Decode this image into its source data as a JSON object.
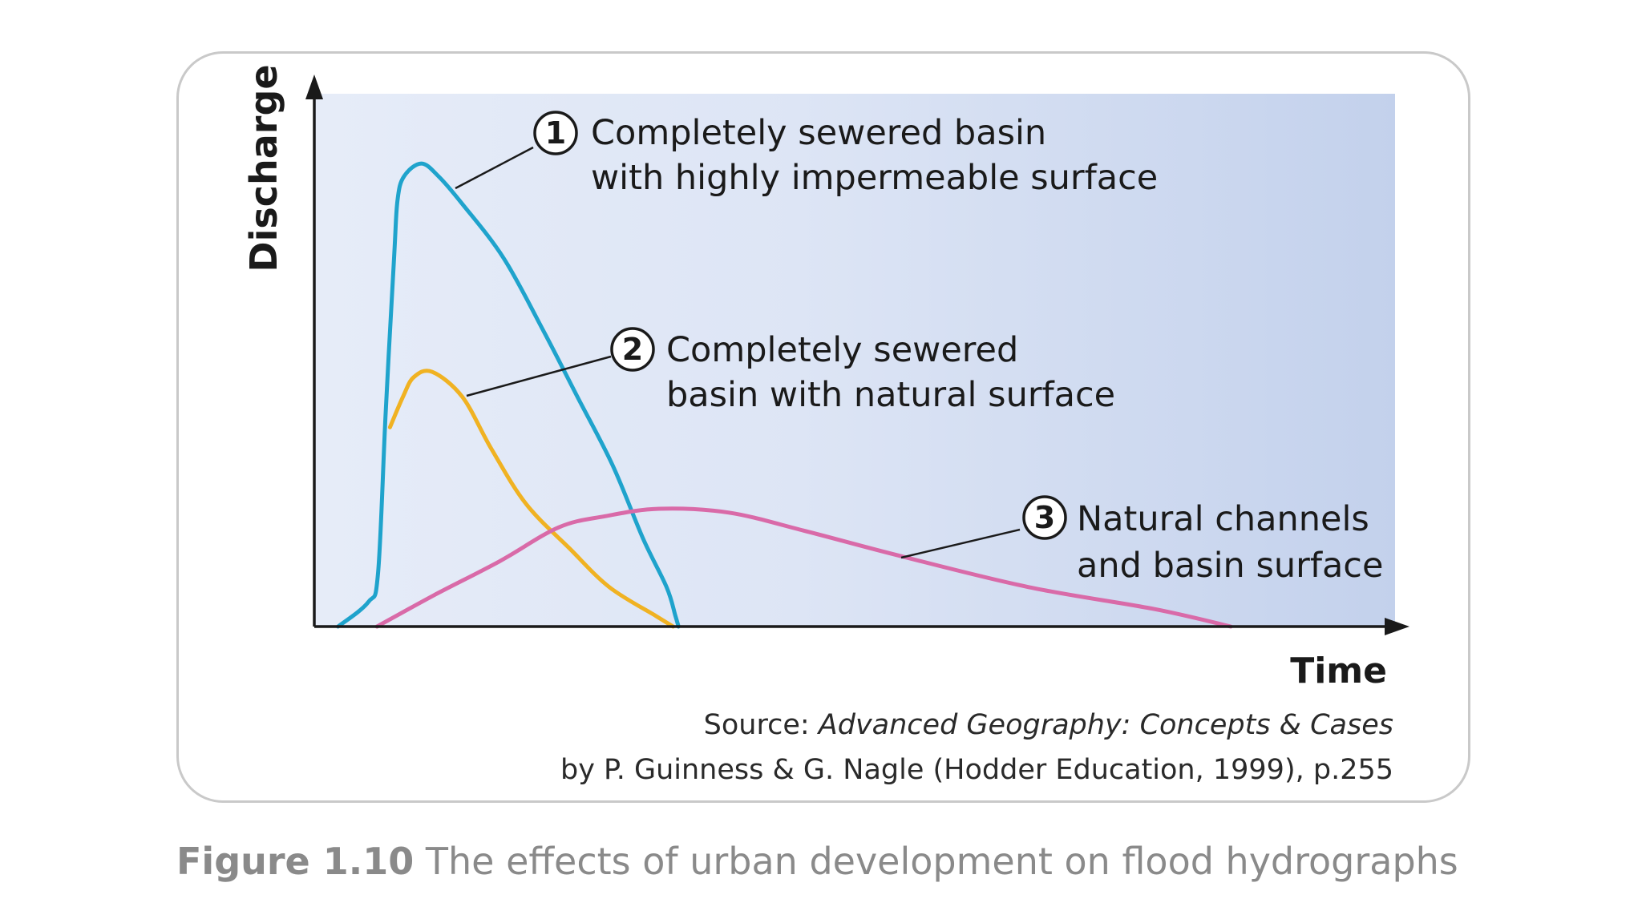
{
  "chart_data": {
    "type": "line",
    "xlabel": "Time",
    "ylabel": "Discharge",
    "xlim": [
      0,
      100
    ],
    "ylim": [
      0,
      100
    ],
    "grid": false,
    "series": [
      {
        "id": "1",
        "marker": "1",
        "label_lines": [
          "Completely sewered basin",
          "with highly impermeable surface"
        ],
        "color": "#1fa3cc",
        "points": [
          [
            2.2,
            0
          ],
          [
            5,
            4.6
          ],
          [
            5.9,
            10
          ],
          [
            6.6,
            40
          ],
          [
            7.4,
            70
          ],
          [
            7.7,
            80
          ],
          [
            8.3,
            84.5
          ],
          [
            9.9,
            86.9
          ],
          [
            11.5,
            84.5
          ],
          [
            13.7,
            79.3
          ],
          [
            17.5,
            69.2
          ],
          [
            21.2,
            55.5
          ],
          [
            24.3,
            43.3
          ],
          [
            27.6,
            30.3
          ],
          [
            30.4,
            16.6
          ],
          [
            32.6,
            7.4
          ],
          [
            33.4,
            2.1
          ],
          [
            33.7,
            0
          ]
        ]
      },
      {
        "id": "2",
        "marker": "2",
        "label_lines": [
          "Completely sewered",
          "basin with natural surface"
        ],
        "color": "#f0b222",
        "points": [
          [
            7.0,
            37.4
          ],
          [
            8.2,
            43.1
          ],
          [
            9.2,
            46.8
          ],
          [
            10.9,
            47.8
          ],
          [
            13.7,
            43.1
          ],
          [
            16.4,
            33.3
          ],
          [
            19.6,
            23.0
          ],
          [
            23.6,
            14.7
          ],
          [
            27.3,
            7.4
          ],
          [
            31.6,
            2.0
          ],
          [
            33.2,
            0
          ]
        ]
      },
      {
        "id": "3",
        "marker": "3",
        "label_lines": [
          "Natural channels",
          "and basin surface"
        ],
        "color": "#d96aa8",
        "points": [
          [
            5.8,
            0
          ],
          [
            11.0,
            5.8
          ],
          [
            17.1,
            12.2
          ],
          [
            22.6,
            18.6
          ],
          [
            26.9,
            20.7
          ],
          [
            31.9,
            22.1
          ],
          [
            38.3,
            21.4
          ],
          [
            45.3,
            18.0
          ],
          [
            54.3,
            13.2
          ],
          [
            66.1,
            7.4
          ],
          [
            77.7,
            3.3
          ],
          [
            84.8,
            0
          ]
        ]
      }
    ]
  },
  "source": {
    "prefix": "Source: ",
    "title": "Advanced Geography: Concepts & Cases",
    "line2": "by P. Guinness & G. Nagle (Hodder Education, 1999), p.255"
  },
  "caption": {
    "label": "Figure 1.10",
    "text": " The effects of urban development on flood hydrographs"
  }
}
